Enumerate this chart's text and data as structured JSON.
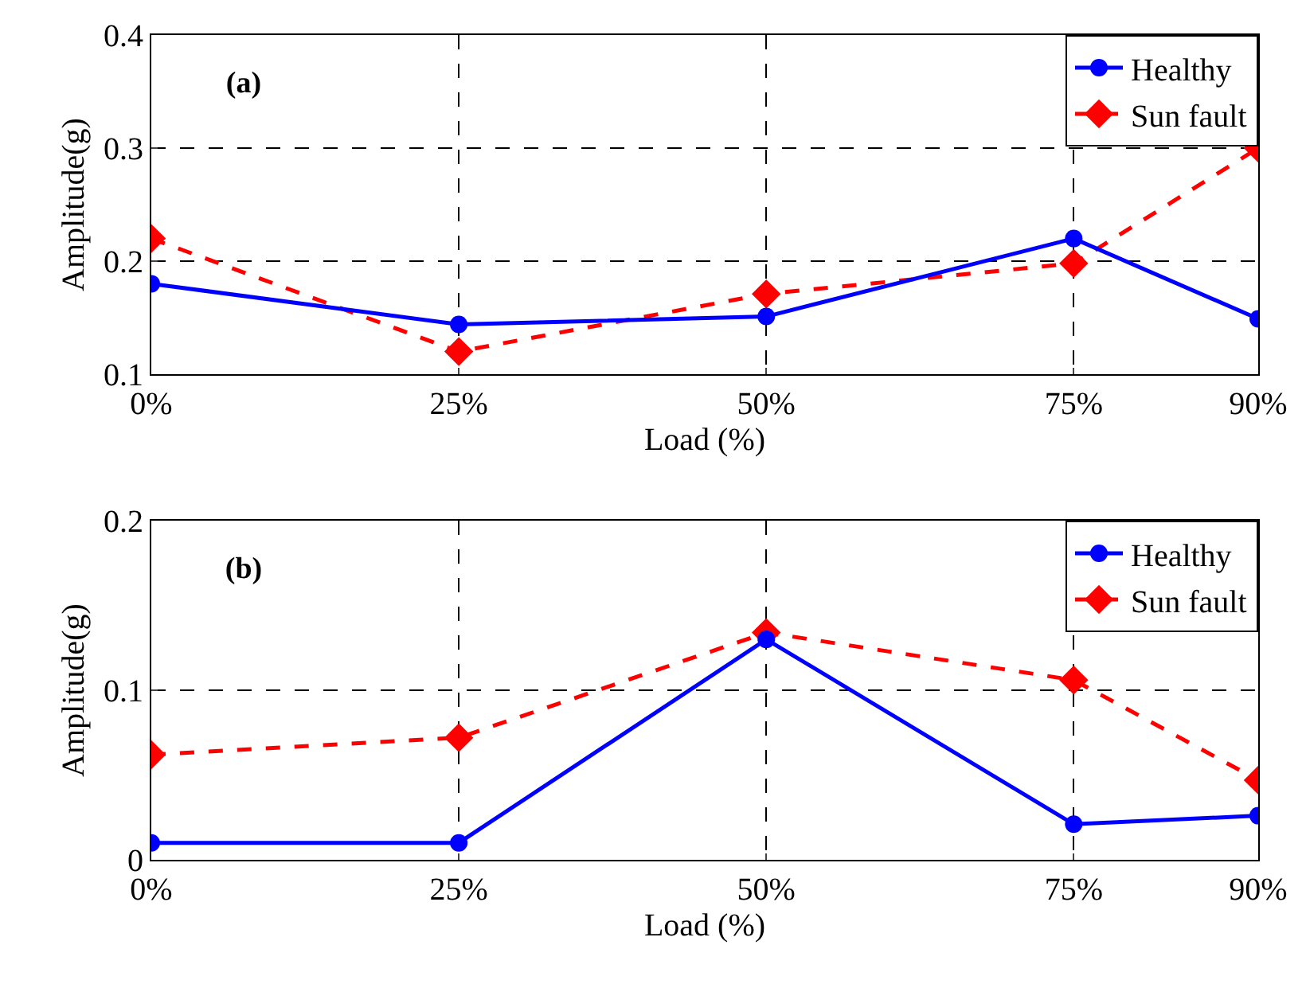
{
  "chart_data": [
    {
      "type": "line",
      "x": [
        0,
        25,
        50,
        75,
        90
      ],
      "xlabel": "Load (%)",
      "ylabel": "Amplitude(g)",
      "annotations": [
        "(a)"
      ],
      "series": [
        {
          "name": "Healthy",
          "color": "#0000ff",
          "values": [
            0.18,
            0.144,
            0.151,
            0.22,
            0.149
          ],
          "marker": "circle",
          "line_style": "solid"
        },
        {
          "name": "Sun fault",
          "color": "#ff0000",
          "values": [
            0.22,
            0.12,
            0.171,
            0.198,
            0.3
          ],
          "marker": "diamond",
          "line_style": "dashed"
        }
      ],
      "xlim": [
        0,
        90
      ],
      "xticks": [
        {
          "value": 0,
          "label": "0%"
        },
        {
          "value": 25,
          "label": "25%"
        },
        {
          "value": 50,
          "label": "50%"
        },
        {
          "value": 75,
          "label": "75%"
        },
        {
          "value": 90,
          "label": "90%"
        }
      ],
      "ylim": [
        0.1,
        0.4
      ],
      "yticks": [
        0.1,
        0.2,
        0.3,
        0.4
      ],
      "grid": true,
      "legend": "top right"
    },
    {
      "type": "line",
      "x": [
        0,
        25,
        50,
        75,
        90
      ],
      "xlabel": "Load (%)",
      "ylabel": "Amplitude(g)",
      "annotations": [
        "(b)"
      ],
      "series": [
        {
          "name": "Healthy",
          "color": "#0000ff",
          "values": [
            0.01,
            0.01,
            0.13,
            0.021,
            0.026
          ],
          "marker": "circle",
          "line_style": "solid"
        },
        {
          "name": "Sun fault",
          "color": "#ff0000",
          "values": [
            0.062,
            0.072,
            0.134,
            0.106,
            0.047
          ],
          "marker": "diamond",
          "line_style": "dashed"
        }
      ],
      "xlim": [
        0,
        90
      ],
      "xticks": [
        {
          "value": 0,
          "label": "0%"
        },
        {
          "value": 25,
          "label": "25%"
        },
        {
          "value": 50,
          "label": "50%"
        },
        {
          "value": 75,
          "label": "75%"
        },
        {
          "value": 90,
          "label": "90%"
        }
      ],
      "ylim": [
        0,
        0.2
      ],
      "yticks": [
        0,
        0.1,
        0.2
      ],
      "grid": true,
      "legend": "top right"
    }
  ]
}
